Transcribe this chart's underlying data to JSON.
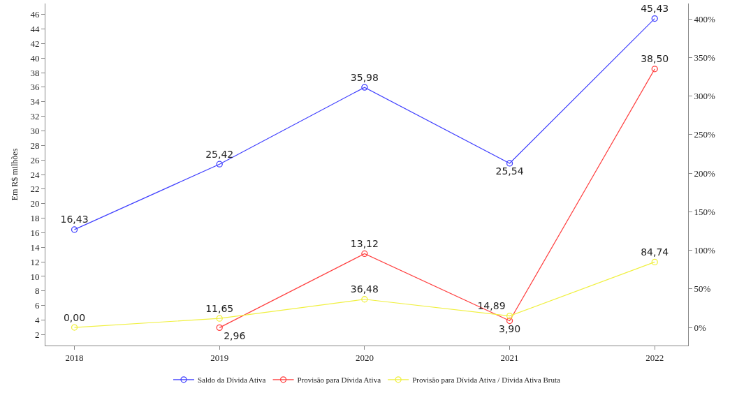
{
  "chart_data": {
    "type": "line",
    "ylabel": "Em R$ milhões",
    "categories": [
      "2018",
      "2019",
      "2020",
      "2021",
      "2022"
    ],
    "series": [
      {
        "name": "Saldo da Dívida Ativa",
        "color": "#4040ff",
        "values": [
          16.43,
          25.42,
          35.98,
          25.54,
          45.43
        ],
        "value_labels": [
          "16,43",
          "25,42",
          "35,98",
          "25,54",
          "45,43"
        ]
      },
      {
        "name": "Provisão para Dívida Ativa",
        "color": "#ff4040",
        "values": [
          null,
          2.96,
          13.12,
          3.9,
          38.5
        ],
        "value_labels": [
          null,
          "2,96",
          "13,12",
          "3,90",
          "38,50"
        ]
      },
      {
        "name": "Provisão para Dívida Ativa / Dívida Ativa Bruta",
        "color": "#f0f040",
        "axis": "y2",
        "values": [
          0,
          11.65,
          36.48,
          14.89,
          84.74
        ],
        "value_labels": [
          "0,00",
          "11,65",
          "36,48",
          "14,89",
          "84,74"
        ]
      }
    ],
    "ylim": [
      0.5,
      47.5
    ],
    "yticks": [
      2,
      4,
      6,
      8,
      10,
      12,
      14,
      16,
      18,
      20,
      22,
      24,
      26,
      28,
      30,
      32,
      34,
      36,
      38,
      40,
      42,
      44,
      46
    ],
    "y2lim": [
      -23.5,
      420
    ],
    "y2ticks": [
      {
        "value": 0,
        "label": "0%"
      },
      {
        "value": 50,
        "label": "50%"
      },
      {
        "value": 100,
        "label": "100%"
      },
      {
        "value": 150,
        "label": "150%"
      },
      {
        "value": 200,
        "label": "200%"
      },
      {
        "value": 250,
        "label": "250%"
      },
      {
        "value": 300,
        "label": "300%"
      },
      {
        "value": 350,
        "label": "350%"
      },
      {
        "value": 400,
        "label": "400%"
      }
    ],
    "marker": "circle",
    "line_style": "solid",
    "legend": "bottom"
  }
}
